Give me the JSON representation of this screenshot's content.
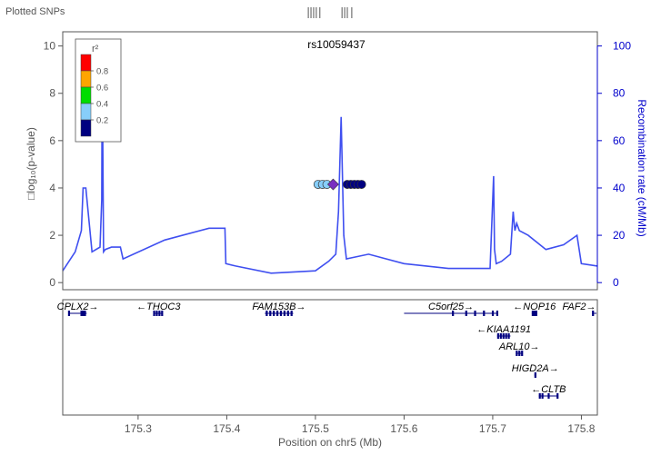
{
  "chart_data": {
    "type": "scatter",
    "header_label": "Plotted SNPs",
    "title": "rs10059437",
    "xlabel": "Position on chr5 (Mb)",
    "ylabel_left": "□log₁₀(p-value)",
    "ylabel_right": "Recombination rate (cM/Mb)",
    "xlim": [
      175.215,
      175.818
    ],
    "ylim_left": [
      -0.3,
      10.6
    ],
    "ylim_right": [
      -3,
      106
    ],
    "x_ticks": [
      175.3,
      175.4,
      175.5,
      175.6,
      175.7,
      175.8
    ],
    "x_tick_labels": [
      "175.3",
      "175.4",
      "175.5",
      "175.6",
      "175.7",
      "175.8"
    ],
    "y_ticks_left": [
      0,
      2,
      4,
      6,
      8,
      10
    ],
    "y_tick_labels_left": [
      "0",
      "2",
      "4",
      "6",
      "8",
      "10"
    ],
    "y_ticks_right": [
      0,
      20,
      40,
      60,
      80,
      100
    ],
    "y_tick_labels_right": [
      "0",
      "20",
      "40",
      "60",
      "80",
      "100"
    ],
    "colors": {
      "left_axis": "#555555",
      "right_axis": "#0000cc",
      "recombination_line": "#3f4ff0",
      "lead_snp": "#7a2fc0",
      "gene": "#000080"
    },
    "legend": {
      "title": "r²",
      "placement": "top-left",
      "bins": [
        {
          "color": "#ff0000"
        },
        {
          "color": "#ffa500"
        },
        {
          "color": "#00dd00"
        },
        {
          "color": "#87cefa"
        },
        {
          "color": "#000080"
        }
      ],
      "labels": [
        "0.8",
        "0.6",
        "0.4",
        "0.2"
      ]
    },
    "rug_snps": [
      175.492,
      175.495,
      175.498,
      175.501,
      175.505,
      175.53,
      175.533,
      175.536,
      175.541
    ],
    "snps": [
      {
        "x": 175.503,
        "y": 4.15,
        "color": "#87cefa",
        "lead": false
      },
      {
        "x": 175.508,
        "y": 4.15,
        "color": "#87cefa",
        "lead": false
      },
      {
        "x": 175.513,
        "y": 4.15,
        "color": "#87cefa",
        "lead": false
      },
      {
        "x": 175.52,
        "y": 4.15,
        "color": "#7a2fc0",
        "lead": true
      },
      {
        "x": 175.536,
        "y": 4.15,
        "color": "#000080",
        "lead": false
      },
      {
        "x": 175.54,
        "y": 4.15,
        "color": "#000080",
        "lead": false
      },
      {
        "x": 175.544,
        "y": 4.15,
        "color": "#000080",
        "lead": false
      },
      {
        "x": 175.548,
        "y": 4.15,
        "color": "#000080",
        "lead": false
      },
      {
        "x": 175.552,
        "y": 4.15,
        "color": "#000080",
        "lead": false
      }
    ],
    "recombination": {
      "x": [
        175.215,
        175.229,
        175.236,
        175.238,
        175.241,
        175.248,
        175.257,
        175.259,
        175.2595,
        175.261,
        175.263,
        175.27,
        175.28,
        175.283,
        175.33,
        175.38,
        175.398,
        175.399,
        175.41,
        175.45,
        175.5,
        175.515,
        175.523,
        175.526,
        175.529,
        175.532,
        175.535,
        175.56,
        175.6,
        175.65,
        175.697,
        175.701,
        175.702,
        175.704,
        175.71,
        175.72,
        175.723,
        175.725,
        175.727,
        175.73,
        175.74,
        175.76,
        175.78,
        175.795,
        175.8,
        175.818
      ],
      "y": [
        0.5,
        1.3,
        2.2,
        4.0,
        4.0,
        1.3,
        1.5,
        3.5,
        9.5,
        1.3,
        1.4,
        1.5,
        1.5,
        1.0,
        1.8,
        2.3,
        2.3,
        0.8,
        0.7,
        0.4,
        0.5,
        0.9,
        1.2,
        3.0,
        7.0,
        2.0,
        1.0,
        1.2,
        0.8,
        0.6,
        0.6,
        4.5,
        1.4,
        0.8,
        0.9,
        1.2,
        3.0,
        2.2,
        2.5,
        2.2,
        2.0,
        1.4,
        1.6,
        2.0,
        0.8,
        0.7
      ]
    },
    "genes": [
      {
        "name": "CPLX2",
        "arrow": "→",
        "start": 175.222,
        "end": 175.242,
        "row": 0,
        "exons": [
          175.222,
          175.236,
          175.238,
          175.24
        ]
      },
      {
        "name": "THOC3",
        "arrow": "←",
        "start": 175.318,
        "end": 175.328,
        "row": 0,
        "exons": [
          175.318,
          175.321,
          175.324,
          175.327
        ]
      },
      {
        "name": "FAM153B",
        "arrow": "→",
        "start": 175.443,
        "end": 175.475,
        "row": 0,
        "exons": [
          175.445,
          175.449,
          175.453,
          175.457,
          175.461,
          175.465,
          175.469,
          175.473
        ]
      },
      {
        "name": "C5orf25",
        "arrow": "→",
        "start": 175.6,
        "end": 175.706,
        "row": 0,
        "exons": [
          175.655,
          175.67,
          175.68,
          175.69,
          175.7,
          175.705
        ]
      },
      {
        "name": "NOP16",
        "arrow": "←",
        "start": 175.744,
        "end": 175.75,
        "row": 0,
        "exons": [
          175.745,
          175.747,
          175.749
        ]
      },
      {
        "name": "FAF2",
        "arrow": "→",
        "start": 175.812,
        "end": 175.818,
        "row": 0,
        "exons": [
          175.813
        ]
      },
      {
        "name": "KIAA1191",
        "arrow": "←",
        "start": 175.705,
        "end": 175.72,
        "row": 1,
        "exons": [
          175.706,
          175.709,
          175.712,
          175.715,
          175.718
        ]
      },
      {
        "name": "ARL10",
        "arrow": "→",
        "start": 175.726,
        "end": 175.734,
        "row": 2,
        "exons": [
          175.727,
          175.73,
          175.733
        ]
      },
      {
        "name": "HIGD2A",
        "arrow": "→",
        "start": 175.747,
        "end": 175.749,
        "row": 3,
        "exons": [
          175.748
        ]
      },
      {
        "name": "CLTB",
        "arrow": "←",
        "start": 175.752,
        "end": 175.774,
        "row": 4,
        "exons": [
          175.753,
          175.756,
          175.763,
          175.773
        ]
      }
    ]
  }
}
